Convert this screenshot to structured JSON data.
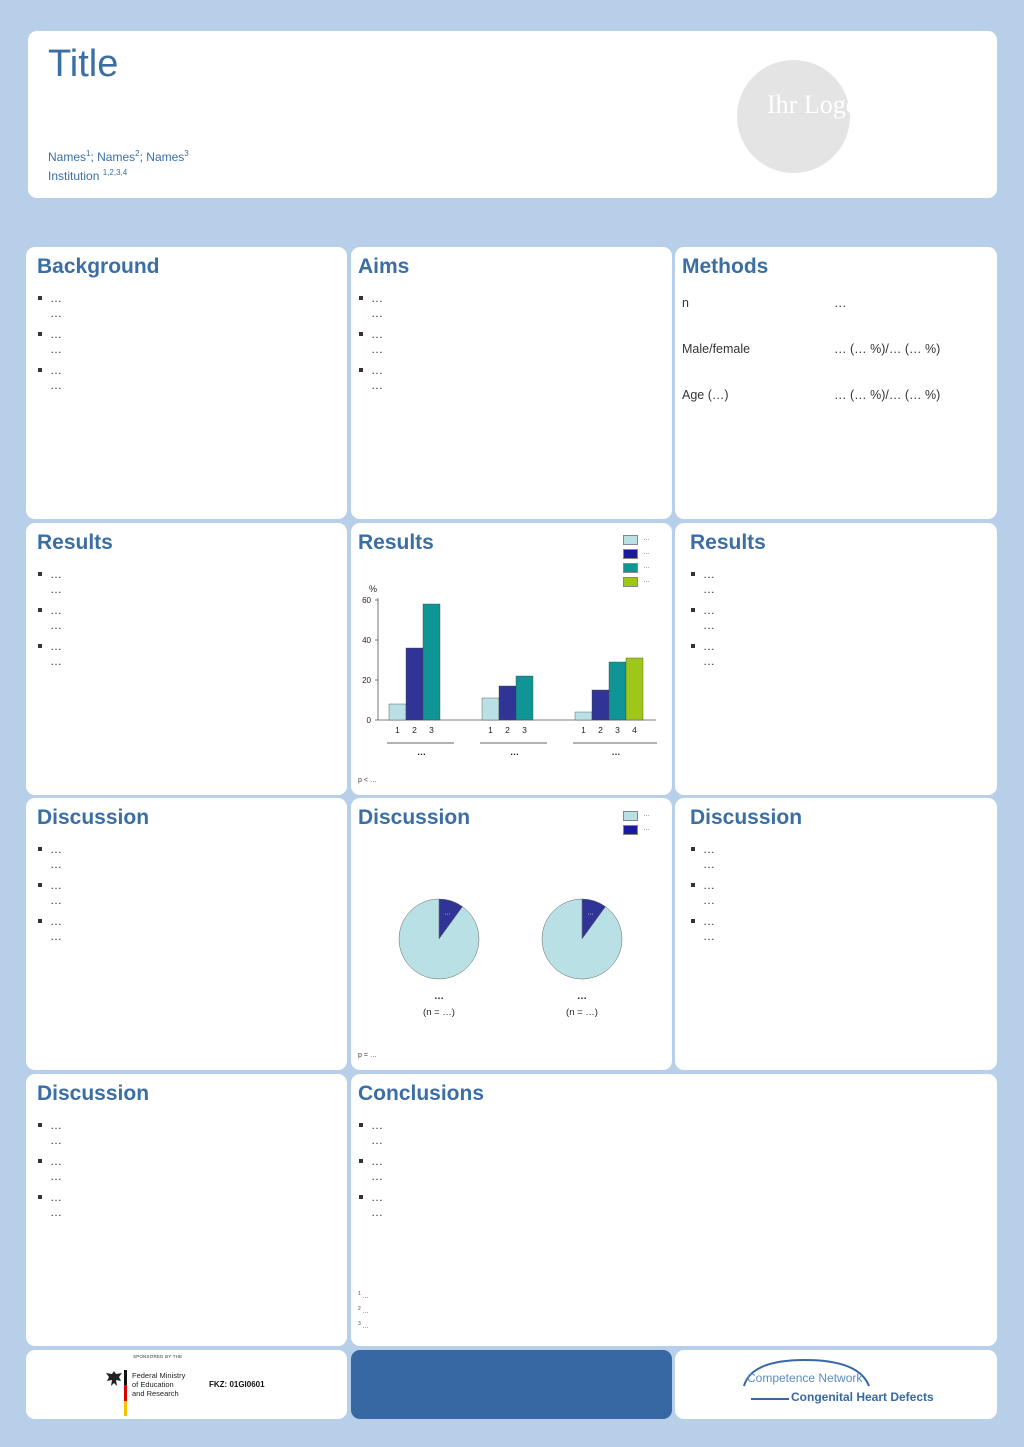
{
  "header": {
    "title": "Title",
    "names": [
      {
        "name": "Names",
        "sup": "1"
      },
      {
        "name": "Names",
        "sup": "2"
      },
      {
        "name": "Names",
        "sup": "3"
      }
    ],
    "institution": "Institution",
    "institution_sup": "1,2,3,4",
    "logo_text": "Ihr Logo"
  },
  "background": {
    "title": "Background",
    "items": [
      {
        "l1": "…",
        "l2": "…"
      },
      {
        "l1": "…",
        "l2": "…"
      },
      {
        "l1": "…",
        "l2": "…"
      }
    ]
  },
  "aims": {
    "title": "Aims",
    "items": [
      {
        "l1": "…",
        "l2": "…"
      },
      {
        "l1": "…",
        "l2": "…"
      },
      {
        "l1": "…",
        "l2": "…"
      }
    ]
  },
  "methods": {
    "title": "Methods",
    "rows": [
      {
        "label": "n",
        "value": "…"
      },
      {
        "label": "Male/female",
        "value": "… (… %)/… (… %)"
      },
      {
        "label": "Age (…)",
        "value": "… (… %)/… (… %)"
      }
    ]
  },
  "results_left": {
    "title": "Results",
    "items": [
      {
        "l1": "…",
        "l2": "…"
      },
      {
        "l1": "…",
        "l2": "…"
      },
      {
        "l1": "…",
        "l2": "…"
      }
    ]
  },
  "results_mid": {
    "title": "Results",
    "legend": [
      "…",
      "…",
      "…",
      "…"
    ],
    "note": "p < …"
  },
  "results_right": {
    "title": "Results",
    "items": [
      {
        "l1": "…",
        "l2": "…"
      },
      {
        "l1": "…",
        "l2": "…"
      },
      {
        "l1": "…",
        "l2": "…"
      }
    ]
  },
  "discussion_1": {
    "title": "Discussion",
    "items": [
      {
        "l1": "…",
        "l2": "…"
      },
      {
        "l1": "…",
        "l2": "…"
      },
      {
        "l1": "…",
        "l2": "…"
      }
    ]
  },
  "discussion_mid": {
    "title": "Discussion",
    "legend": [
      "…",
      "…"
    ],
    "note": "p = …"
  },
  "discussion_3": {
    "title": "Discussion",
    "items": [
      {
        "l1": "…",
        "l2": "…"
      },
      {
        "l1": "…",
        "l2": "…"
      },
      {
        "l1": "…",
        "l2": "…"
      }
    ]
  },
  "discussion_4": {
    "title": "Discussion",
    "items": [
      {
        "l1": "…",
        "l2": "…"
      },
      {
        "l1": "…",
        "l2": "…"
      },
      {
        "l1": "…",
        "l2": "…"
      }
    ]
  },
  "conclusions": {
    "title": "Conclusions",
    "items": [
      {
        "l1": "…",
        "l2": "…"
      },
      {
        "l1": "…",
        "l2": "…"
      },
      {
        "l1": "…",
        "l2": "…"
      }
    ],
    "footnotes": [
      {
        "sup": "1",
        "text": "…"
      },
      {
        "sup": "2",
        "text": "…"
      },
      {
        "sup": "3",
        "text": "…"
      }
    ]
  },
  "footer": {
    "sponsor_caption": "SPONSORED BY THE",
    "ministry_lines": [
      "Federal Ministry",
      "of Education",
      "and Research"
    ],
    "fkz": "FKZ: 01GI0601",
    "network_line1": "Competence Network",
    "network_line2": "Congenital Heart Defects"
  },
  "colors": {
    "c1": "#b9e0e4",
    "c2": "#303496",
    "c3": "#0f9595",
    "c4": "#9fc71a",
    "title": "#3a6ea5",
    "bg": "#b8cfe9",
    "band": "#3868a4"
  },
  "chart_data": [
    {
      "type": "bar",
      "ylabel": "%",
      "ylim": [
        0,
        60
      ],
      "yticks": [
        0,
        20,
        40,
        60
      ],
      "groups": [
        {
          "label": "…",
          "categories": [
            "1",
            "2",
            "3"
          ],
          "values": [
            8,
            36,
            58
          ]
        },
        {
          "label": "…",
          "categories": [
            "1",
            "2",
            "3"
          ],
          "values": [
            11,
            17,
            22
          ]
        },
        {
          "label": "…",
          "categories": [
            "1",
            "2",
            "3",
            "4"
          ],
          "values": [
            4,
            15,
            29,
            31
          ]
        }
      ],
      "legend": [
        "…",
        "…",
        "…",
        "…"
      ],
      "legend_position": "top-right"
    },
    {
      "type": "pie",
      "pies": [
        {
          "label": "…",
          "sublabel": "(n = …)",
          "slices": [
            {
              "value": 90
            },
            {
              "value": 10,
              "label": "…"
            }
          ]
        },
        {
          "label": "…",
          "sublabel": "(n = …)",
          "slices": [
            {
              "value": 90
            },
            {
              "value": 10,
              "label": "…"
            }
          ]
        }
      ],
      "legend": [
        "…",
        "…"
      ],
      "legend_position": "top-right"
    }
  ]
}
